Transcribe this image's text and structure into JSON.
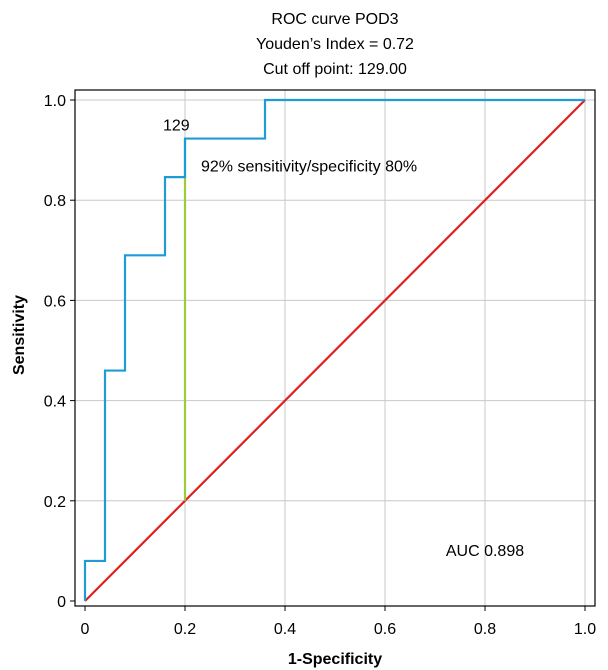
{
  "chart_data": {
    "type": "line",
    "title_lines": [
      "ROC curve POD3",
      "Youden’s Index = 0.72",
      "Cut off point: 129.00"
    ],
    "xlabel": "1-Specificity",
    "ylabel": "Sensitivity",
    "xlim": [
      0,
      1
    ],
    "ylim": [
      0,
      1
    ],
    "xticks": [
      0,
      0.2,
      0.4,
      0.6,
      0.8,
      1.0
    ],
    "xtick_labels": [
      "0",
      "0.2",
      "0.4",
      "0.6",
      "0.8",
      "1.0"
    ],
    "yticks": [
      0,
      0.2,
      0.4,
      0.6,
      0.8,
      1.0
    ],
    "ytick_labels": [
      "0",
      "0.2",
      "0.4",
      "0.6",
      "0.8",
      "1.0"
    ],
    "grid": true,
    "series": [
      {
        "role": "roc",
        "color": "#1f9bd6",
        "x": [
          0,
          0,
          0.04,
          0.04,
          0.08,
          0.08,
          0.16,
          0.16,
          0.2,
          0.2,
          0.36,
          0.36,
          1.0
        ],
        "y": [
          0,
          0.08,
          0.08,
          0.46,
          0.46,
          0.69,
          0.69,
          0.846,
          0.846,
          0.923,
          0.923,
          1.0,
          1.0
        ]
      },
      {
        "role": "reference",
        "color": "#e02020",
        "x": [
          0,
          1
        ],
        "y": [
          0,
          1
        ]
      },
      {
        "role": "youden",
        "color": "#9ccc3a",
        "x": [
          0.2,
          0.2
        ],
        "y": [
          0.2,
          0.923
        ]
      }
    ],
    "annotations": [
      {
        "text": "129",
        "x": 0.2,
        "y": 0.923
      },
      {
        "text": "92% sensitivity/specificity 80%",
        "x": 0.2,
        "y": 0.923
      },
      {
        "text": "AUC 0.898",
        "x": 0.8,
        "y": 0.1
      }
    ]
  }
}
